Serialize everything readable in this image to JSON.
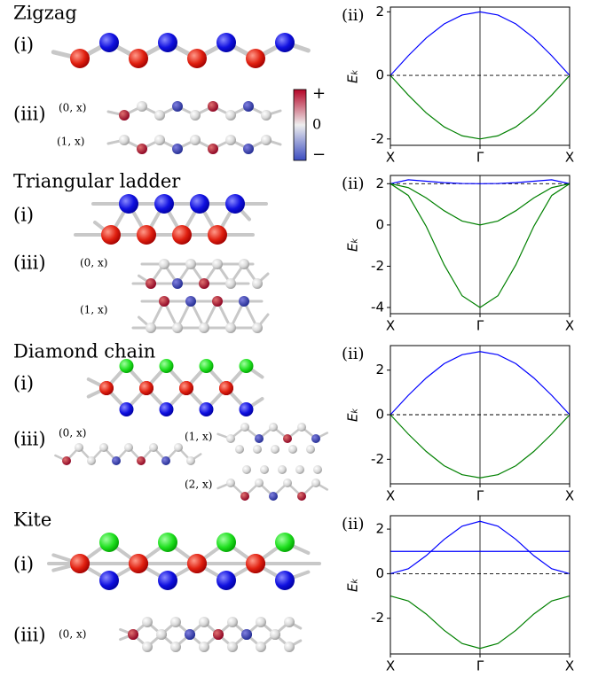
{
  "panels": [
    {
      "title": "Zigzag",
      "label_i": "(i)",
      "label_iii": "(iii)",
      "sublabels": [
        "(0, x)",
        "(1, x)"
      ]
    },
    {
      "title": "Triangular ladder",
      "label_i": "(i)",
      "label_iii": "(iii)",
      "sublabels": [
        "(0, x)",
        "(1, x)"
      ]
    },
    {
      "title": "Diamond chain",
      "label_i": "(i)",
      "label_iii": "(iii)",
      "sublabels": [
        "(0, x)",
        "(1, x)",
        "(2, x)"
      ]
    },
    {
      "title": "Kite",
      "label_i": "(i)",
      "label_iii": "(iii)",
      "sublabels": [
        "(0, x)"
      ]
    }
  ],
  "colorbar": {
    "labels": [
      "+",
      "0",
      "−"
    ]
  },
  "chart_data": [
    {
      "type": "line",
      "panel_label": "(ii)",
      "ylabel": "Eₖ",
      "x": [
        -1,
        -0.8,
        -0.6,
        -0.4,
        -0.2,
        0,
        0.2,
        0.4,
        0.6,
        0.8,
        1
      ],
      "xlim": [
        -1,
        1
      ],
      "xticks": [
        {
          "value": -1,
          "label": "X"
        },
        {
          "value": 0,
          "label": "Γ"
        },
        {
          "value": 1,
          "label": "X"
        }
      ],
      "ylim": [
        -2.2,
        2.15
      ],
      "yticks": [
        -2,
        0,
        2
      ],
      "fermi_level": 0,
      "series": [
        {
          "color": "#0000ff",
          "values": [
            0,
            0.62,
            1.18,
            1.62,
            1.9,
            2,
            1.9,
            1.62,
            1.18,
            0.62,
            0
          ]
        },
        {
          "color": "#008000",
          "values": [
            0,
            -0.62,
            -1.18,
            -1.62,
            -1.9,
            -2,
            -1.9,
            -1.62,
            -1.18,
            -0.62,
            0
          ]
        }
      ]
    },
    {
      "type": "line",
      "panel_label": "(ii)",
      "ylabel": "Eₖ",
      "x": [
        -1,
        -0.8,
        -0.6,
        -0.4,
        -0.2,
        0,
        0.2,
        0.4,
        0.6,
        0.8,
        1
      ],
      "xlim": [
        -1,
        1
      ],
      "xticks": [
        {
          "value": -1,
          "label": "X"
        },
        {
          "value": 0,
          "label": "Γ"
        },
        {
          "value": 1,
          "label": "X"
        }
      ],
      "ylim": [
        -4.3,
        2.4
      ],
      "yticks": [
        -4,
        -2,
        0,
        2
      ],
      "fermi_level": 2,
      "series": [
        {
          "color": "#0000ff",
          "values": [
            2,
            2.19,
            2.12,
            2.05,
            2.01,
            2,
            2.01,
            2.05,
            2.12,
            2.19,
            2
          ]
        },
        {
          "color": "#008000",
          "values": [
            2,
            1.81,
            1.31,
            0.69,
            0.19,
            0,
            0.19,
            0.69,
            1.31,
            1.81,
            2
          ]
        },
        {
          "color": "#008000",
          "values": [
            2,
            1.43,
            -0.07,
            -1.93,
            -3.43,
            -4,
            -3.43,
            -1.93,
            -0.07,
            1.43,
            2
          ]
        }
      ]
    },
    {
      "type": "line",
      "panel_label": "(ii)",
      "ylabel": "Eₖ",
      "x": [
        -1,
        -0.8,
        -0.6,
        -0.4,
        -0.2,
        0,
        0.2,
        0.4,
        0.6,
        0.8,
        1
      ],
      "xlim": [
        -1,
        1
      ],
      "xticks": [
        {
          "value": -1,
          "label": "X"
        },
        {
          "value": 0,
          "label": "Γ"
        },
        {
          "value": 1,
          "label": "X"
        }
      ],
      "ylim": [
        -3.1,
        3.1
      ],
      "yticks": [
        -2,
        0,
        2
      ],
      "fermi_level": 0,
      "series": [
        {
          "color": "#0000ff",
          "values": [
            0,
            0.87,
            1.65,
            2.29,
            2.69,
            2.83,
            2.69,
            2.29,
            1.65,
            0.87,
            0
          ]
        },
        {
          "color": "#008000",
          "values": [
            0,
            -0.87,
            -1.65,
            -2.29,
            -2.69,
            -2.83,
            -2.69,
            -2.29,
            -1.65,
            -0.87,
            0
          ]
        }
      ]
    },
    {
      "type": "line",
      "panel_label": "(ii)",
      "ylabel": "Eₖ",
      "x": [
        -1,
        -0.8,
        -0.6,
        -0.4,
        -0.2,
        0,
        0.2,
        0.4,
        0.6,
        0.8,
        1
      ],
      "xlim": [
        -1,
        1
      ],
      "xticks": [
        {
          "value": -1,
          "label": "X"
        },
        {
          "value": 0,
          "label": "Γ"
        },
        {
          "value": 1,
          "label": "X"
        }
      ],
      "ylim": [
        -3.6,
        2.6
      ],
      "yticks": [
        -2,
        0,
        2
      ],
      "fermi_level": 0,
      "series": [
        {
          "color": "#0000ff",
          "values": [
            0,
            0.22,
            0.81,
            1.54,
            2.13,
            2.35,
            2.13,
            1.54,
            0.81,
            0.22,
            0
          ]
        },
        {
          "color": "#0000ff",
          "values": [
            1,
            1,
            1,
            1,
            1,
            1,
            1,
            1,
            1,
            1,
            1
          ]
        },
        {
          "color": "#008000",
          "values": [
            -1,
            -1.22,
            -1.81,
            -2.54,
            -3.13,
            -3.35,
            -3.13,
            -2.54,
            -1.81,
            -1.22,
            -1
          ]
        }
      ]
    }
  ]
}
